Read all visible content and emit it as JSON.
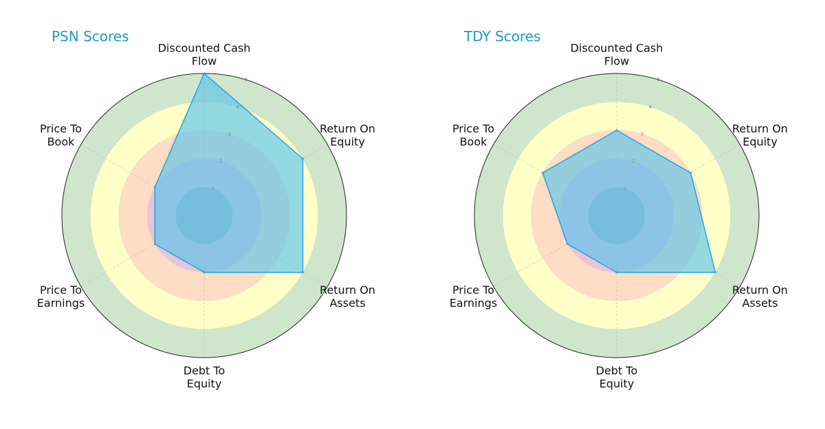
{
  "chart_data": [
    {
      "type": "radar",
      "title": "PSN Scores",
      "axes": [
        [
          "Discounted Cash",
          "Flow"
        ],
        [
          "Return On",
          "Equity"
        ],
        [
          "Return On",
          "Assets"
        ],
        [
          "Debt To",
          "Equity"
        ],
        [
          "Price To",
          "Earnings"
        ],
        [
          "Price To",
          "Book"
        ]
      ],
      "values": [
        5,
        4,
        4,
        2,
        2,
        2
      ],
      "rlim": [
        0,
        5
      ],
      "ticks": [
        1,
        2,
        3,
        4,
        5
      ],
      "bands": [
        {
          "from": 0,
          "to": 1,
          "color": "#a9b0c4"
        },
        {
          "from": 1,
          "to": 2,
          "color": "#e7c4d9"
        },
        {
          "from": 2,
          "to": 3,
          "color": "#ffdcc4"
        },
        {
          "from": 3,
          "to": 4,
          "color": "#ffffc8"
        },
        {
          "from": 4,
          "to": 5,
          "color": "#cfe6cc"
        }
      ],
      "fill_color": "#5bc4ec",
      "line_color": "#2aa5e4"
    },
    {
      "type": "radar",
      "title": "TDY Scores",
      "axes": [
        [
          "Discounted Cash",
          "Flow"
        ],
        [
          "Return On",
          "Equity"
        ],
        [
          "Return On",
          "Assets"
        ],
        [
          "Debt To",
          "Equity"
        ],
        [
          "Price To",
          "Earnings"
        ],
        [
          "Price To",
          "Book"
        ]
      ],
      "values": [
        3,
        3,
        4,
        2,
        2,
        3
      ],
      "rlim": [
        0,
        5
      ],
      "ticks": [
        1,
        2,
        3,
        4,
        5
      ],
      "bands": [
        {
          "from": 0,
          "to": 1,
          "color": "#a9b0c4"
        },
        {
          "from": 1,
          "to": 2,
          "color": "#e7c4d9"
        },
        {
          "from": 2,
          "to": 3,
          "color": "#ffdcc4"
        },
        {
          "from": 3,
          "to": 4,
          "color": "#ffffc8"
        },
        {
          "from": 4,
          "to": 5,
          "color": "#cfe6cc"
        }
      ],
      "fill_color": "#5bc4ec",
      "line_color": "#2aa5e4"
    }
  ]
}
